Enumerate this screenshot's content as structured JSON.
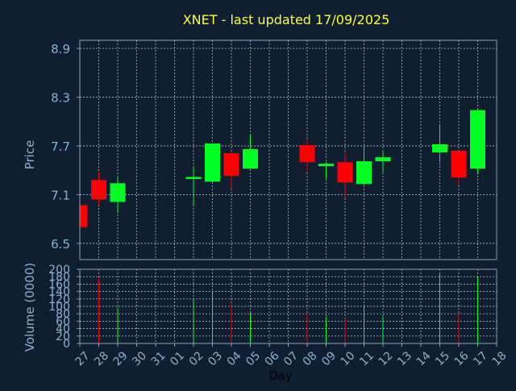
{
  "colors": {
    "background": "#0f1e30",
    "panel_border": "#8aa3be",
    "grid": "#c8d4e0",
    "title": "#ffff33",
    "axis_text": "#8fb0d0",
    "xlabel_text": "#000000",
    "up": "#00ff22",
    "down": "#ff0000"
  },
  "chart_data": [
    {
      "type": "candlestick",
      "title": "XNET - last updated 17/09/2025",
      "ylabel": "Price",
      "ylim": [
        6.3,
        9.0
      ],
      "yticks": [
        "6.5",
        "7.1",
        "7.7",
        "8.3",
        "8.9"
      ],
      "grid": true,
      "x": [
        "27",
        "28",
        "29",
        "30",
        "31",
        "01",
        "02",
        "03",
        "04",
        "05",
        "06",
        "07",
        "08",
        "09",
        "10",
        "11",
        "12",
        "13",
        "14",
        "15",
        "16",
        "17",
        "18"
      ],
      "candles": [
        {
          "day": "27",
          "open": 6.97,
          "close": 6.7,
          "high": 6.97,
          "low": 6.7
        },
        {
          "day": "28",
          "open": 7.28,
          "close": 7.04,
          "high": 7.38,
          "low": 6.98
        },
        {
          "day": "29",
          "open": 7.01,
          "close": 7.24,
          "high": 7.32,
          "low": 6.88
        },
        {
          "day": "02",
          "open": 7.3,
          "close": 7.31,
          "high": 7.45,
          "low": 6.95
        },
        {
          "day": "03",
          "open": 7.26,
          "close": 7.73,
          "high": 7.73,
          "low": 7.24
        },
        {
          "day": "04",
          "open": 7.61,
          "close": 7.33,
          "high": 7.62,
          "low": 7.17
        },
        {
          "day": "05",
          "open": 7.42,
          "close": 7.66,
          "high": 7.84,
          "low": 7.42
        },
        {
          "day": "08",
          "open": 7.71,
          "close": 7.5,
          "high": 7.78,
          "low": 7.38
        },
        {
          "day": "09",
          "open": 7.45,
          "close": 7.48,
          "high": 7.5,
          "low": 7.3
        },
        {
          "day": "10",
          "open": 7.5,
          "close": 7.25,
          "high": 7.62,
          "low": 7.05
        },
        {
          "day": "11",
          "open": 7.23,
          "close": 7.51,
          "high": 7.7,
          "low": 7.22
        },
        {
          "day": "12",
          "open": 7.51,
          "close": 7.56,
          "high": 7.64,
          "low": 7.38
        },
        {
          "day": "15",
          "open": 7.62,
          "close": 7.72,
          "high": 7.95,
          "low": 7.5
        },
        {
          "day": "16",
          "open": 7.64,
          "close": 7.31,
          "high": 7.64,
          "low": 7.22
        },
        {
          "day": "17",
          "open": 7.42,
          "close": 8.14,
          "high": 8.16,
          "low": 7.35
        }
      ]
    },
    {
      "type": "bar",
      "ylabel": "Volume (0000)",
      "xlabel": "Day",
      "ylim": [
        0,
        200
      ],
      "yticks": [
        "0",
        "20",
        "40",
        "60",
        "80",
        "100",
        "120",
        "140",
        "160",
        "180",
        "200"
      ],
      "grid": true,
      "x": [
        "27",
        "28",
        "29",
        "30",
        "31",
        "01",
        "02",
        "03",
        "04",
        "05",
        "06",
        "07",
        "08",
        "09",
        "10",
        "11",
        "12",
        "13",
        "14",
        "15",
        "16",
        "17",
        "18"
      ],
      "volumes": [
        {
          "day": "28",
          "value": 175,
          "dir": "down"
        },
        {
          "day": "29",
          "value": 97,
          "dir": "up"
        },
        {
          "day": "02",
          "value": 118,
          "dir": "up"
        },
        {
          "day": "03",
          "value": 138,
          "dir": "up"
        },
        {
          "day": "04",
          "value": 110,
          "dir": "down"
        },
        {
          "day": "05",
          "value": 82,
          "dir": "up"
        },
        {
          "day": "08",
          "value": 80,
          "dir": "down"
        },
        {
          "day": "09",
          "value": 72,
          "dir": "up"
        },
        {
          "day": "10",
          "value": 68,
          "dir": "down"
        },
        {
          "day": "11",
          "value": 105,
          "dir": "up"
        },
        {
          "day": "12",
          "value": 73,
          "dir": "up"
        },
        {
          "day": "15",
          "value": 190,
          "dir": "up"
        },
        {
          "day": "16",
          "value": 82,
          "dir": "down"
        },
        {
          "day": "17",
          "value": 178,
          "dir": "up"
        }
      ]
    }
  ]
}
